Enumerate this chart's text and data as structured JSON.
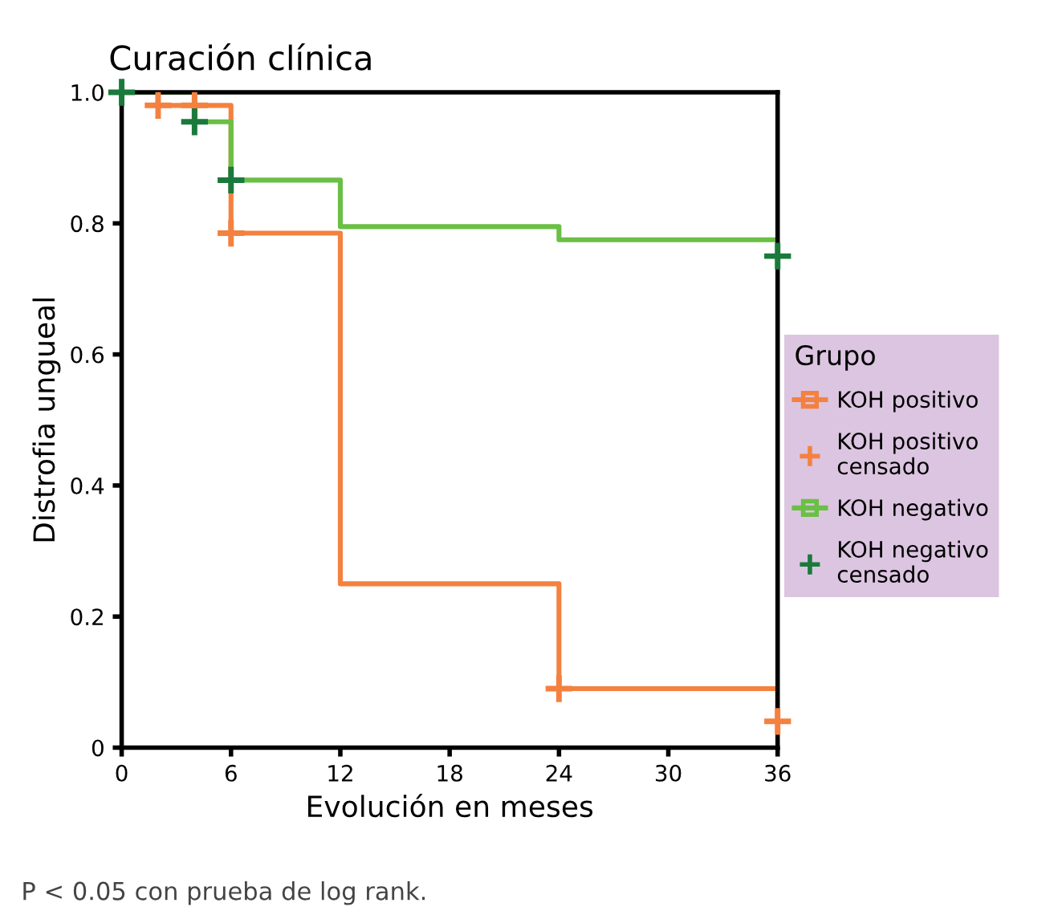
{
  "chart_data": {
    "type": "step",
    "title": "Curación clínica",
    "xlabel": "Evolución en meses",
    "ylabel": "Distrofia ungueal",
    "legend_title": "Grupo",
    "legend": "right",
    "xlim": [
      0,
      36
    ],
    "xticks": [
      0,
      6,
      12,
      18,
      24,
      30,
      36
    ],
    "ylim": [
      0,
      1.0
    ],
    "yticks": [
      0,
      0.2,
      0.4,
      0.6,
      0.8,
      {
        "value": 1.0,
        "label": "1.0"
      }
    ],
    "grid": false,
    "series": [
      {
        "name": "KOH positivo",
        "color": "#f4813f",
        "x": [
          0,
          2,
          6,
          12,
          24,
          36
        ],
        "values": [
          1.0,
          0.98,
          0.785,
          0.25,
          0.09,
          0.04
        ]
      },
      {
        "name": "KOH positivo censado",
        "type": "scatter",
        "marker": "cross",
        "color": "#f4813f",
        "x": [
          2,
          4,
          6,
          24,
          36
        ],
        "values": [
          0.98,
          0.98,
          0.785,
          0.09,
          0.04
        ]
      },
      {
        "name": "KOH negativo",
        "color": "#6abf45",
        "x": [
          0,
          4,
          6,
          12,
          24,
          36
        ],
        "values": [
          1.0,
          0.955,
          0.866,
          0.795,
          0.775,
          0.775
        ]
      },
      {
        "name": "KOH negativo censado",
        "type": "scatter",
        "marker": "cross",
        "color": "#1a7a3c",
        "x": [
          0,
          4,
          6,
          36
        ],
        "values": [
          1.0,
          0.955,
          0.866,
          0.75
        ]
      }
    ],
    "annotations": [
      "P < 0.05 con prueba de log rank."
    ]
  }
}
